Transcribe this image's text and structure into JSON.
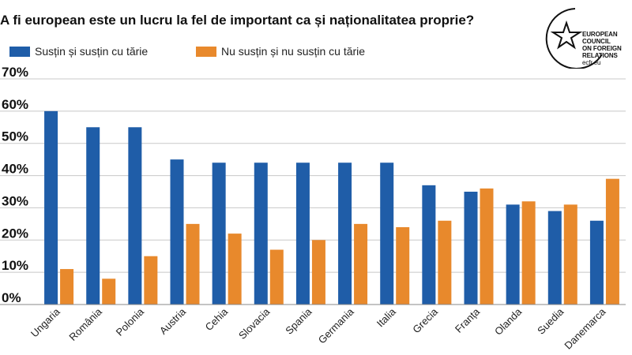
{
  "title": "A fi european este un lucru la fel de important ca și naționalitatea proprie?",
  "logo": {
    "lines": [
      "EUROPEAN",
      "COUNCIL",
      "ON FOREIGN",
      "RELATIONS"
    ],
    "url": "ecfr.eu",
    "icon": "star-icon"
  },
  "colors": {
    "series1": "#1f5da8",
    "series2": "#e8892c",
    "grid": "#c8c8c8"
  },
  "chart_data": {
    "type": "bar",
    "title": "A fi european este un lucru la fel de important ca și naționalitatea proprie?",
    "categories": [
      "Ungaria",
      "România",
      "Polonia",
      "Austria",
      "Cehia",
      "Slovacia",
      "Spania",
      "Germania",
      "Italia",
      "Grecia",
      "Franța",
      "Olanda",
      "Suedia",
      "Danemarca"
    ],
    "series": [
      {
        "name": "Susțin și susțin cu tărie",
        "values": [
          60,
          55,
          55,
          45,
          44,
          44,
          44,
          44,
          44,
          37,
          35,
          31,
          29,
          26
        ]
      },
      {
        "name": "Nu susțin și nu susțin cu tărie",
        "values": [
          11,
          8,
          15,
          25,
          22,
          17,
          20,
          25,
          24,
          26,
          36,
          32,
          31,
          39
        ]
      }
    ],
    "ylim": [
      0,
      70
    ],
    "yticks": [
      "0%",
      "10%",
      "20%",
      "30%",
      "40%",
      "50%",
      "60%",
      "70%"
    ],
    "grid": true,
    "legend_position": "top-left"
  }
}
